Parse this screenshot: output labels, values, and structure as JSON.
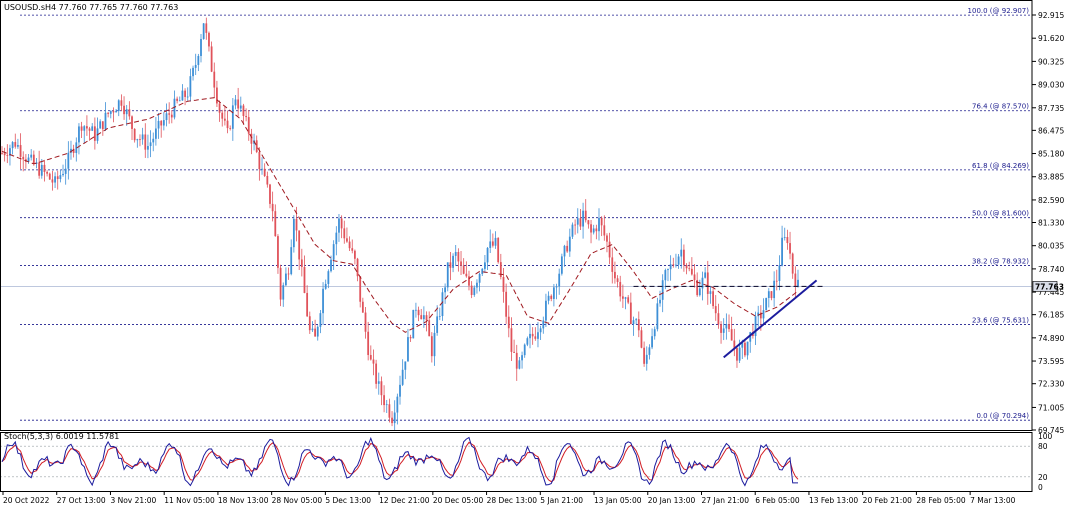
{
  "chart_data": {
    "type": "candlestick",
    "header": "USOUSD.sH4  77.760 77.765 77.760 77.763",
    "current_price": 77.763,
    "current_price_label": "77.763",
    "price_axis_ticks": [
      "92.915",
      "91.620",
      "90.325",
      "89.030",
      "87.735",
      "86.475",
      "85.180",
      "83.885",
      "82.590",
      "81.330",
      "80.035",
      "78.740",
      "77.445",
      "76.185",
      "74.890",
      "73.595",
      "72.330",
      "71.005",
      "69.745"
    ],
    "ylim": [
      69.745,
      92.915
    ],
    "date_labels": [
      "20 Oct 2022",
      "27 Oct 13:00",
      "3 Nov 21:00",
      "11 Nov 05:00",
      "18 Nov 13:00",
      "28 Nov 05:00",
      "5 Dec 13:00",
      "12 Dec 21:00",
      "20 Dec 05:00",
      "28 Dec 13:00",
      "5 Jan 21:00",
      "13 Jan 05:00",
      "20 Jan 13:00",
      "27 Jan 21:00",
      "6 Feb 05:00",
      "13 Feb 13:00",
      "20 Feb 21:00",
      "28 Feb 05:00",
      "7 Mar 13:00"
    ],
    "fib_levels": [
      {
        "label": "100.0 (@ 92.907)",
        "value": 92.907
      },
      {
        "label": "76.4 (@ 87.570)",
        "value": 87.57
      },
      {
        "label": "61.8 (@ 84.269)",
        "value": 84.269
      },
      {
        "label": "50.0 (@ 81.600)",
        "value": 81.6
      },
      {
        "label": "38.2 (@ 78.932)",
        "value": 78.932
      },
      {
        "label": "23.6 (@ 75.631)",
        "value": 75.631
      },
      {
        "label": "0.0 (@ 70.294)",
        "value": 70.294
      }
    ],
    "price_keypoints": [
      [
        0,
        85.2
      ],
      [
        5,
        85.8
      ],
      [
        10,
        84.8
      ],
      [
        15,
        84.2
      ],
      [
        20,
        83.5
      ],
      [
        25,
        84.8
      ],
      [
        30,
        86.9
      ],
      [
        35,
        86.2
      ],
      [
        40,
        87.4
      ],
      [
        45,
        88.2
      ],
      [
        50,
        86.3
      ],
      [
        55,
        85.6
      ],
      [
        60,
        86.8
      ],
      [
        65,
        87.8
      ],
      [
        70,
        88.6
      ],
      [
        73,
        90.2
      ],
      [
        76,
        92.6
      ],
      [
        78,
        90.8
      ],
      [
        82,
        87.6
      ],
      [
        85,
        86.2
      ],
      [
        88,
        88.4
      ],
      [
        92,
        86.8
      ],
      [
        95,
        85.7
      ],
      [
        98,
        84.1
      ],
      [
        102,
        82.1
      ],
      [
        105,
        77.2
      ],
      [
        108,
        78.9
      ],
      [
        110,
        81.9
      ],
      [
        113,
        78.4
      ],
      [
        116,
        75.2
      ],
      [
        118,
        74.8
      ],
      [
        121,
        77.6
      ],
      [
        124,
        79.6
      ],
      [
        127,
        81.4
      ],
      [
        130,
        80.3
      ],
      [
        133,
        79.1
      ],
      [
        136,
        76.1
      ],
      [
        139,
        73.5
      ],
      [
        142,
        72.1
      ],
      [
        145,
        71.1
      ],
      [
        147,
        70.5
      ],
      [
        150,
        72.5
      ],
      [
        153,
        74.6
      ],
      [
        156,
        76.7
      ],
      [
        159,
        76.1
      ],
      [
        162,
        74.2
      ],
      [
        165,
        76.4
      ],
      [
        168,
        78.7
      ],
      [
        171,
        79.5
      ],
      [
        174,
        78.3
      ],
      [
        177,
        77.6
      ],
      [
        180,
        78.6
      ],
      [
        183,
        79.9
      ],
      [
        186,
        80.1
      ],
      [
        189,
        77.2
      ],
      [
        192,
        74.2
      ],
      [
        195,
        73.2
      ],
      [
        198,
        74.6
      ],
      [
        201,
        75.2
      ],
      [
        204,
        76.2
      ],
      [
        207,
        77.4
      ],
      [
        210,
        78.6
      ],
      [
        213,
        80.1
      ],
      [
        216,
        81.2
      ],
      [
        219,
        81.6
      ],
      [
        222,
        80.7
      ],
      [
        225,
        81.4
      ],
      [
        228,
        80.2
      ],
      [
        231,
        78.3
      ],
      [
        234,
        77.1
      ],
      [
        237,
        76.1
      ],
      [
        240,
        75.5
      ],
      [
        242,
        73.2
      ],
      [
        244,
        74.6
      ],
      [
        247,
        76.4
      ],
      [
        250,
        78.3
      ],
      [
        253,
        79.1
      ],
      [
        256,
        79.8
      ],
      [
        259,
        78.6
      ],
      [
        262,
        77.7
      ],
      [
        265,
        78.2
      ],
      [
        268,
        76.7
      ],
      [
        271,
        75.6
      ],
      [
        274,
        75.1
      ],
      [
        277,
        74.0
      ],
      [
        280,
        74.3
      ],
      [
        283,
        75.4
      ],
      [
        286,
        76.2
      ],
      [
        289,
        77.1
      ],
      [
        292,
        78.2
      ],
      [
        294,
        80.1
      ],
      [
        296,
        80.5
      ],
      [
        298,
        78.6
      ],
      [
        300,
        77.763
      ]
    ],
    "ma_keypoints": [
      [
        0,
        85.3
      ],
      [
        12,
        84.6
      ],
      [
        25,
        85.2
      ],
      [
        40,
        86.6
      ],
      [
        55,
        87.1
      ],
      [
        70,
        88.1
      ],
      [
        80,
        88.3
      ],
      [
        90,
        87.1
      ],
      [
        100,
        84.6
      ],
      [
        110,
        82.1
      ],
      [
        118,
        80.1
      ],
      [
        125,
        79.2
      ],
      [
        132,
        79.0
      ],
      [
        140,
        77.1
      ],
      [
        147,
        75.7
      ],
      [
        152,
        75.2
      ],
      [
        160,
        75.8
      ],
      [
        170,
        77.6
      ],
      [
        180,
        78.6
      ],
      [
        190,
        78.4
      ],
      [
        198,
        76.1
      ],
      [
        206,
        75.7
      ],
      [
        214,
        77.6
      ],
      [
        222,
        79.6
      ],
      [
        230,
        80.1
      ],
      [
        238,
        78.6
      ],
      [
        245,
        77.1
      ],
      [
        252,
        77.6
      ],
      [
        260,
        78.1
      ],
      [
        268,
        77.7
      ],
      [
        276,
        76.8
      ],
      [
        284,
        76.1
      ],
      [
        292,
        76.6
      ],
      [
        300,
        77.5
      ]
    ],
    "trendline": {
      "x0": 272,
      "y0": 73.8,
      "x1": 307,
      "y1": 78.1
    },
    "resistance_line": {
      "x0": 238,
      "x1": 310,
      "value": 77.76
    },
    "stoch": {
      "label": "Stoch(5,3,3) 6.0019 11.5781",
      "levels_shown": [
        "100",
        "80",
        "20",
        "0"
      ],
      "overbought": 80,
      "oversold": 20,
      "ylim": [
        0,
        100
      ]
    },
    "colors": {
      "bull": "#3d8fd6",
      "bear": "#e0525a",
      "ma": "#a01a20",
      "fib": "#1a1a8c",
      "trendline": "#1c1c9e",
      "stoch_main": "#1c1c9e",
      "stoch_signal": "#d21e25",
      "current_price_box": "#d9dde8"
    }
  }
}
